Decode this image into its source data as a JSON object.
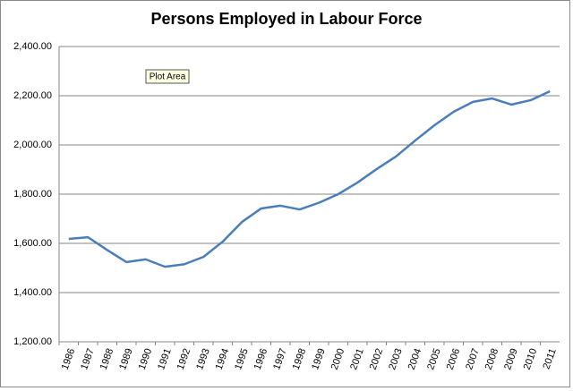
{
  "chart_data": {
    "type": "line",
    "title": "Persons Employed in Labour Force",
    "annotation": "Plot Area",
    "categories": [
      "1986",
      "1987",
      "1988",
      "1989",
      "1990",
      "1991",
      "1992",
      "1993",
      "1994",
      "1995",
      "1996",
      "1997",
      "1998",
      "1999",
      "2000",
      "2001",
      "2002",
      "2003",
      "2004",
      "2005",
      "2006",
      "2007",
      "2008",
      "2009",
      "2010",
      "2011"
    ],
    "series": [
      {
        "color": "#4a7ebb",
        "values": [
          1618,
          1625,
          1573,
          1524,
          1535,
          1505,
          1515,
          1545,
          1607,
          1687,
          1742,
          1753,
          1738,
          1765,
          1800,
          1847,
          1902,
          1953,
          2018,
          2080,
          2135,
          2175,
          2189,
          2164,
          2182,
          2218
        ]
      }
    ],
    "ylim": [
      1200,
      2400
    ],
    "yticks": [
      {
        "value": 1200,
        "label": "1,200.00"
      },
      {
        "value": 1400,
        "label": "1,400.00"
      },
      {
        "value": 1600,
        "label": "1,600.00"
      },
      {
        "value": 1800,
        "label": "1,800.00"
      },
      {
        "value": 2000,
        "label": "2,000.00"
      },
      {
        "value": 2200,
        "label": "2,200.00"
      },
      {
        "value": 2400,
        "label": "2,400.00"
      }
    ],
    "grid": true
  }
}
